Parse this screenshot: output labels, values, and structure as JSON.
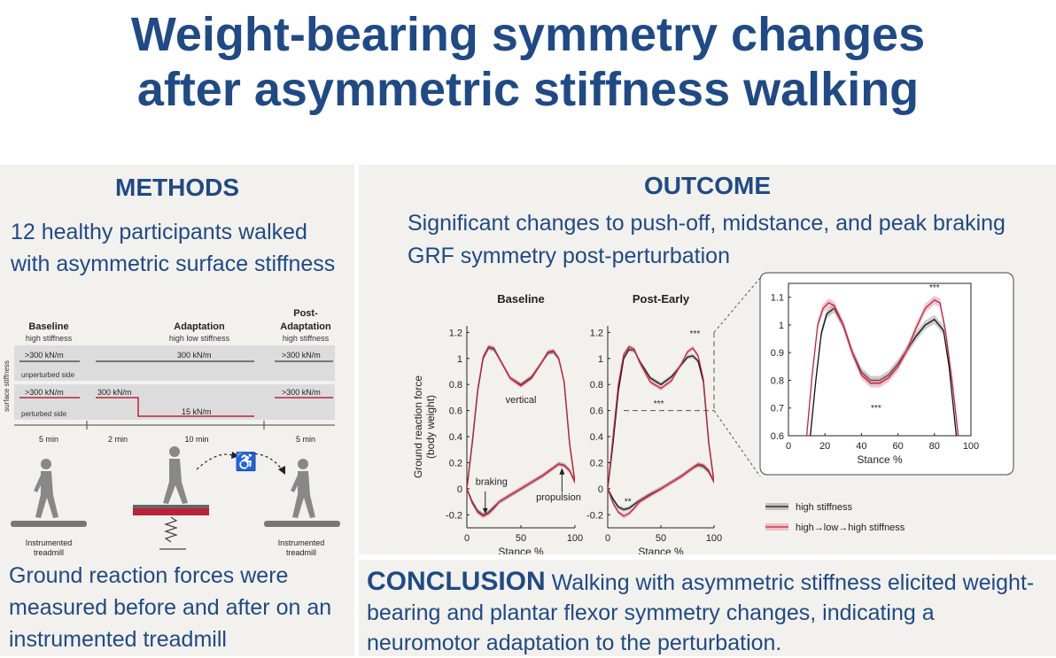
{
  "title": {
    "line1": "Weight-bearing symmetry changes",
    "line2": "after asymmetric stiffness walking"
  },
  "methods": {
    "heading": "METHODS",
    "text": "12 healthy participants walked with asymmetric surface stiffness",
    "result_text": "Ground reaction forces were measured before and after on an instrumented treadmill",
    "diagram": {
      "phases": [
        {
          "name": "Baseline",
          "sub": "high stiffness",
          "duration": "5 min"
        },
        {
          "name": "Adaptation",
          "sub": "high low stiffness",
          "duration": "10 min"
        },
        {
          "name_line1": "Post-",
          "name_line2": "Adaptation",
          "sub": "high stiffness",
          "duration": "5 min"
        }
      ],
      "pre_duration": "2 min",
      "y_label": "surface stiffness",
      "unperturbed_label": "unperturbed side",
      "perturbed_label": "perturbed side",
      "unperturbed_values": [
        ">300 kN/m",
        "300 kN/m",
        ">300 kN/m"
      ],
      "perturbed_values": [
        ">300 kN/m",
        "300 kN/m",
        "15 kN/m",
        ">300 kN/m"
      ],
      "treadmill_label_line1": "Instrumented",
      "treadmill_label_line2": "treadmill",
      "colors": {
        "perturbed_line": "#b8233b",
        "unperturbed_line": "#555555",
        "band": "#dcdcdc"
      }
    }
  },
  "outcome": {
    "heading": "OUTCOME",
    "text": "Significant changes to push-off, midstance, and peak braking GRF symmetry post-perturbation"
  },
  "chart_data": [
    {
      "type": "line",
      "title": "Baseline",
      "xlabel": "Stance %",
      "ylabel": "Ground reaction force (body weight)",
      "xlim": [
        0,
        100
      ],
      "ylim": [
        -0.3,
        1.25
      ],
      "xticks": [
        "0",
        "50",
        "100"
      ],
      "yticks": [
        "-0.2",
        "0",
        "0.2",
        "0.4",
        "0.6",
        "0.8",
        "1",
        "1.2"
      ],
      "annotations": [
        "vertical",
        "braking",
        "propulsion"
      ],
      "series": [
        {
          "name": "high stiffness",
          "component": "vertical",
          "x": [
            0,
            5,
            10,
            15,
            20,
            25,
            30,
            40,
            50,
            60,
            70,
            75,
            80,
            85,
            90,
            95,
            100
          ],
          "y": [
            0,
            0.35,
            0.75,
            1.0,
            1.08,
            1.07,
            1.0,
            0.85,
            0.8,
            0.86,
            0.98,
            1.04,
            1.05,
            1.0,
            0.82,
            0.35,
            0.05
          ]
        },
        {
          "name": "high stiffness",
          "component": "fore-aft",
          "x": [
            0,
            5,
            10,
            15,
            20,
            25,
            30,
            40,
            50,
            60,
            70,
            80,
            85,
            90,
            95,
            100
          ],
          "y": [
            0,
            -0.1,
            -0.17,
            -0.2,
            -0.18,
            -0.14,
            -0.1,
            -0.05,
            0,
            0.05,
            0.1,
            0.16,
            0.19,
            0.18,
            0.14,
            0.05
          ]
        },
        {
          "name": "high→low→high stiffness",
          "component": "vertical",
          "x": [
            0,
            5,
            10,
            15,
            20,
            25,
            30,
            40,
            50,
            60,
            70,
            75,
            80,
            85,
            90,
            95,
            100
          ],
          "y": [
            0,
            0.36,
            0.76,
            1.01,
            1.09,
            1.08,
            1.0,
            0.85,
            0.79,
            0.85,
            0.98,
            1.05,
            1.06,
            1.0,
            0.82,
            0.35,
            0.05
          ]
        },
        {
          "name": "high→low→high stiffness",
          "component": "fore-aft",
          "x": [
            0,
            5,
            10,
            15,
            20,
            25,
            30,
            40,
            50,
            60,
            70,
            80,
            85,
            90,
            95,
            100
          ],
          "y": [
            0,
            -0.11,
            -0.18,
            -0.21,
            -0.19,
            -0.15,
            -0.1,
            -0.05,
            0,
            0.05,
            0.1,
            0.16,
            0.19,
            0.18,
            0.14,
            0.05
          ]
        }
      ]
    },
    {
      "type": "line",
      "title": "Post-Early",
      "xlabel": "Stance %",
      "xlim": [
        0,
        100
      ],
      "ylim": [
        -0.3,
        1.25
      ],
      "xticks": [
        "0",
        "50",
        "100"
      ],
      "yticks": [
        "-0.2",
        "0",
        "0.2",
        "0.4",
        "0.6",
        "0.8",
        "1",
        "1.2"
      ],
      "annotations": [
        "***",
        "***",
        "**"
      ],
      "series": [
        {
          "name": "high stiffness",
          "component": "vertical",
          "x": [
            0,
            5,
            10,
            15,
            20,
            25,
            30,
            40,
            50,
            60,
            70,
            75,
            80,
            85,
            90,
            95,
            100
          ],
          "y": [
            0,
            0.35,
            0.75,
            1.0,
            1.07,
            1.06,
            0.98,
            0.85,
            0.8,
            0.86,
            0.96,
            1.01,
            1.02,
            0.98,
            0.82,
            0.35,
            0.05
          ]
        },
        {
          "name": "high stiffness",
          "component": "fore-aft",
          "x": [
            0,
            5,
            10,
            15,
            20,
            25,
            30,
            40,
            50,
            60,
            70,
            80,
            85,
            90,
            95,
            100
          ],
          "y": [
            0,
            -0.08,
            -0.14,
            -0.16,
            -0.15,
            -0.12,
            -0.09,
            -0.04,
            0,
            0.05,
            0.1,
            0.16,
            0.18,
            0.17,
            0.13,
            0.05
          ]
        },
        {
          "name": "high→low→high stiffness",
          "component": "vertical",
          "x": [
            0,
            5,
            10,
            15,
            20,
            25,
            30,
            40,
            50,
            60,
            70,
            75,
            80,
            85,
            90,
            95,
            100
          ],
          "y": [
            0,
            0.4,
            0.8,
            1.03,
            1.09,
            1.07,
            0.97,
            0.82,
            0.77,
            0.83,
            0.97,
            1.05,
            1.08,
            1.02,
            0.84,
            0.36,
            0.05
          ]
        },
        {
          "name": "high→low→high stiffness",
          "component": "fore-aft",
          "x": [
            0,
            5,
            10,
            15,
            20,
            25,
            30,
            40,
            50,
            60,
            70,
            80,
            85,
            90,
            95,
            100
          ],
          "y": [
            0,
            -0.11,
            -0.18,
            -0.21,
            -0.19,
            -0.15,
            -0.1,
            -0.05,
            0,
            0.05,
            0.1,
            0.16,
            0.19,
            0.18,
            0.14,
            0.05
          ]
        }
      ]
    },
    {
      "type": "line",
      "title": "",
      "xlabel": "Stance %",
      "xlim": [
        0,
        100
      ],
      "ylim": [
        0.6,
        1.15
      ],
      "xticks": [
        "0",
        "20",
        "40",
        "60",
        "80",
        "100"
      ],
      "yticks": [
        "0.6",
        "0.7",
        "0.8",
        "0.9",
        "1",
        "1.1"
      ],
      "annotations": [
        "***",
        "***"
      ],
      "legend": [
        "high stiffness",
        "high→low→high stiffness"
      ],
      "series": [
        {
          "name": "high stiffness",
          "x": [
            12,
            15,
            18,
            21,
            25,
            30,
            35,
            40,
            45,
            50,
            55,
            60,
            65,
            70,
            75,
            80,
            85,
            88,
            92
          ],
          "y": [
            0.6,
            0.8,
            0.97,
            1.04,
            1.06,
            1.0,
            0.9,
            0.83,
            0.8,
            0.8,
            0.82,
            0.86,
            0.91,
            0.96,
            1.0,
            1.02,
            0.98,
            0.85,
            0.6
          ]
        },
        {
          "name": "high→low→high stiffness",
          "x": [
            10,
            13,
            16,
            19,
            22,
            25,
            30,
            35,
            40,
            45,
            50,
            55,
            60,
            65,
            70,
            75,
            80,
            83,
            86,
            90,
            93
          ],
          "y": [
            0.6,
            0.82,
            1.0,
            1.06,
            1.08,
            1.07,
            1.0,
            0.9,
            0.82,
            0.79,
            0.79,
            0.81,
            0.85,
            0.91,
            0.99,
            1.06,
            1.09,
            1.08,
            0.98,
            0.78,
            0.6
          ]
        }
      ],
      "colors": {
        "high_stiffness": "#111111",
        "high_low_high": "#c2233d"
      }
    }
  ],
  "conclusion": {
    "heading": "CONCLUSION",
    "text": " Walking with asymmetric stiffness elicited weight-bearing and plantar flexor symmetry changes, indicating a neuromotor adaptation to the perturbation."
  }
}
